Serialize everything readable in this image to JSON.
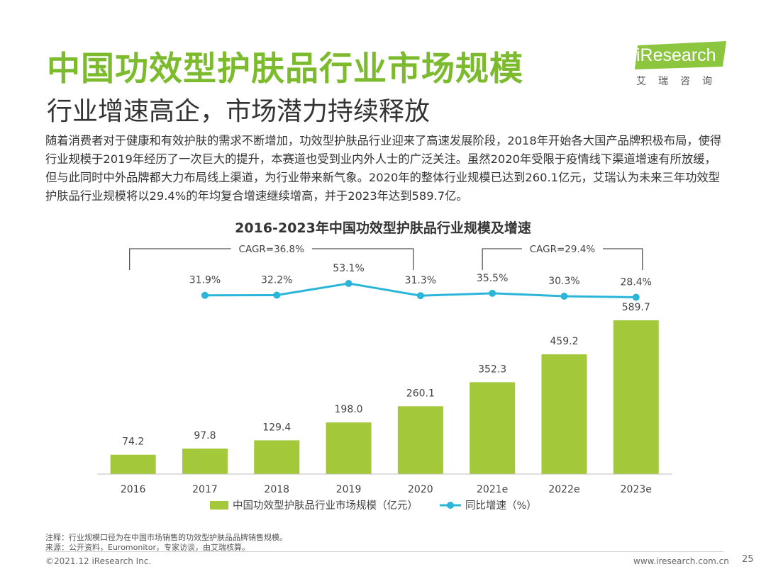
{
  "header": {
    "title": "中国功效型护肤品行业市场规模",
    "subtitle": "行业增速高企，市场潜力持续释放"
  },
  "logo": {
    "text": "iResearch",
    "subtext": "艾瑞咨询"
  },
  "body_text": "随着消费者对于健康和有效护肤的需求不断增加，功效型护肤品行业迎来了高速发展阶段，2018年开始各大国产品牌积极布局，使得行业规模于2019年经历了一次巨大的提升，本赛道也受到业内外人士的广泛关注。虽然2020年受限于疫情线下渠道增速有所放缓，但与此同时中外品牌都大力布局线上渠道，为行业带来新气象。2020年的整体行业规模已达到260.1亿元，艾瑞认为未来三年功效型护肤品行业规模将以29.4%的年均复合增速继续增高，并于2023年达到589.7亿。",
  "chart_data": {
    "type": "bar+line",
    "title": "2016-2023年中国功效型护肤品行业规模及增速",
    "categories": [
      "2016",
      "2017",
      "2018",
      "2019",
      "2020",
      "2021e",
      "2022e",
      "2023e"
    ],
    "series": [
      {
        "name": "中国功效型护肤品行业市场规模（亿元）",
        "type": "bar",
        "values": [
          74.2,
          97.8,
          129.4,
          198.0,
          260.1,
          352.3,
          459.2,
          589.7
        ],
        "labels": [
          "74.2",
          "97.8",
          "129.4",
          "198.0",
          "260.1",
          "352.3",
          "459.2",
          "589.7"
        ]
      },
      {
        "name": "同比增速（%）",
        "type": "line",
        "values": [
          null,
          31.9,
          32.2,
          53.1,
          31.3,
          35.5,
          30.3,
          28.4
        ],
        "labels": [
          "",
          "31.9%",
          "32.2%",
          "53.1%",
          "31.3%",
          "35.5%",
          "30.3%",
          "28.4%"
        ]
      }
    ],
    "annotations": [
      {
        "text": "CAGR=36.8%",
        "from": "2016",
        "to": "2020"
      },
      {
        "text": "CAGR=29.4%",
        "from": "2021e",
        "to": "2023e"
      }
    ],
    "ylim": [
      0,
      600
    ],
    "colors": {
      "bar": "#a3c83a",
      "line": "#2bb5d8"
    }
  },
  "notes": {
    "note": "注释：行业规模口径为在中国市场销售的功效型护肤品品牌销售规模。",
    "source": "来源：公开资料，Euromonitor，专家访谈，由艾瑞核算。"
  },
  "footer": {
    "copyright": "©2021.12 iResearch Inc.",
    "website": "www.iresearch.com.cn",
    "page": "25"
  },
  "colors": {
    "title": "#7dbb2e",
    "logo_bg": "#8cc63f"
  }
}
